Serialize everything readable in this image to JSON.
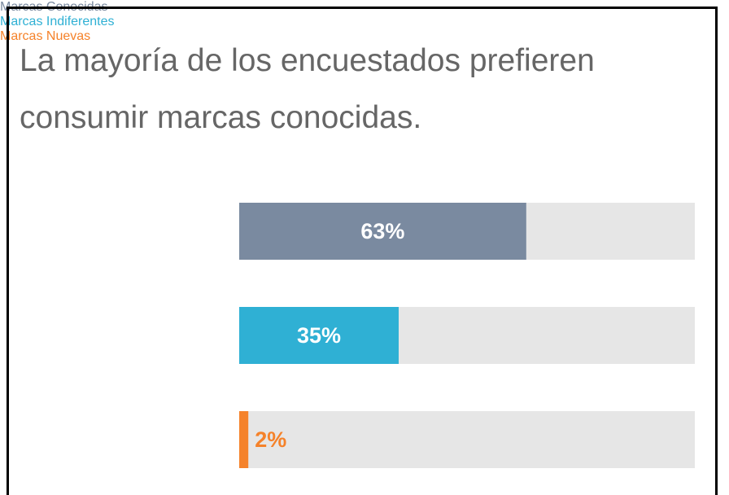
{
  "chart_data": {
    "type": "bar",
    "orientation": "horizontal",
    "title": "La mayoría de los encuestados prefieren consumir marcas conocidas.",
    "categories": [
      "Marcas Conocidas",
      "Marcas Indiferentes",
      "Marcas Nuevas"
    ],
    "values": [
      63,
      35,
      2
    ],
    "value_labels": [
      "63%",
      "35%",
      "2%"
    ],
    "colors": [
      "#7a8aa0",
      "#2fb0d4",
      "#f5822a"
    ],
    "track_color": "#e6e6e6",
    "xlim": [
      0,
      100
    ]
  }
}
